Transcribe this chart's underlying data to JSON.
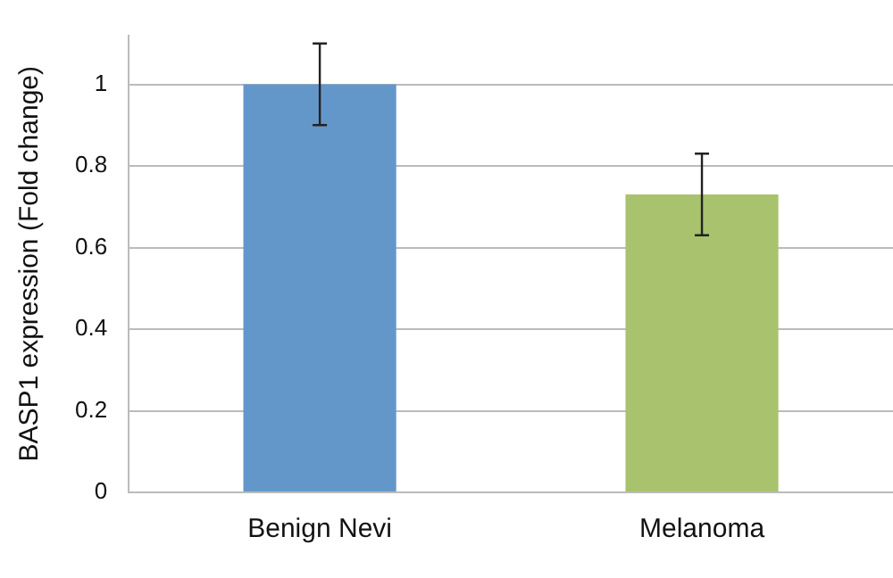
{
  "chart_data": {
    "type": "bar",
    "ylabel": "BASP1 expression (Fold change)",
    "categories": [
      "Benign Nevi",
      "Melanoma"
    ],
    "values": [
      1.0,
      0.73
    ],
    "colors": [
      "#6497c9",
      "#a9c26e"
    ],
    "errors": [
      0.1,
      0.1
    ],
    "ylim": [
      0,
      1.12
    ],
    "yticks": [
      0,
      0.2,
      0.4,
      0.6,
      0.8,
      1
    ],
    "grid": "y",
    "legend": false
  }
}
